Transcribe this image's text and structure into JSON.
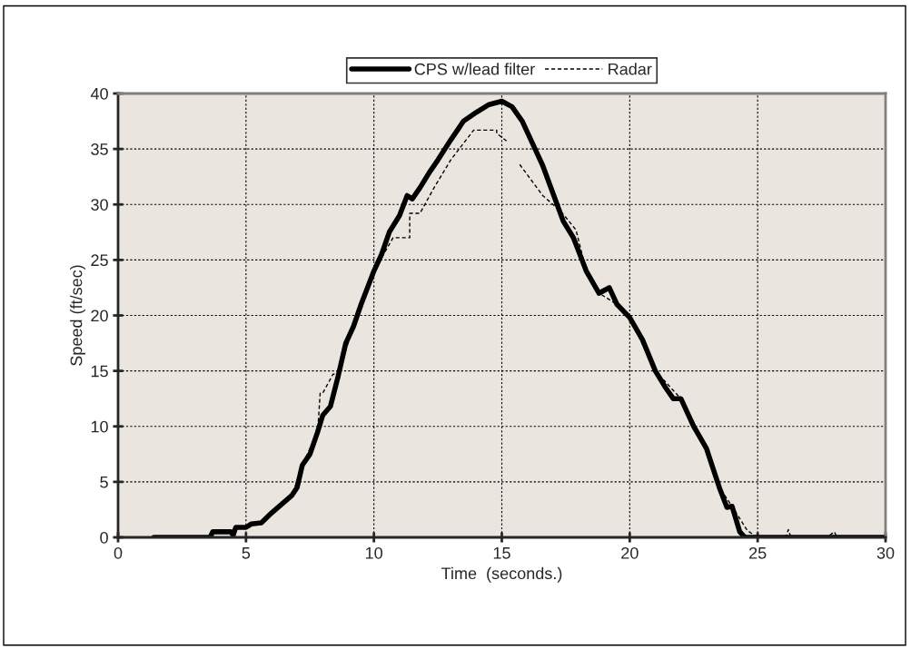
{
  "chart_data": {
    "type": "line",
    "xlabel": "Time  (seconds.)",
    "ylabel": "Speed (ft/sec)",
    "xlim": [
      0,
      30
    ],
    "xticks": [
      0,
      5,
      10,
      15,
      20,
      25,
      30
    ],
    "ylim": [
      0,
      40
    ],
    "yticks": [
      0,
      5,
      10,
      15,
      20,
      25,
      30,
      35,
      40
    ],
    "grid": true,
    "legend": "top",
    "series": [
      {
        "name": "CPS w/lead filter",
        "color": "#000000",
        "line_style": "solid",
        "x": [
          1.4,
          3.6,
          3.7,
          4.4,
          4.5,
          4.6,
          5.0,
          5.2,
          5.6,
          6.0,
          6.4,
          6.8,
          7.0,
          7.2,
          7.5,
          7.8,
          8.0,
          8.3,
          8.6,
          8.9,
          9.2,
          9.5,
          9.8,
          10.0,
          10.3,
          10.6,
          11.0,
          11.3,
          11.5,
          11.8,
          12.2,
          12.5,
          13.0,
          13.5,
          14.0,
          14.5,
          15.0,
          15.4,
          15.8,
          16.3,
          16.6,
          17.0,
          17.4,
          17.8,
          18.3,
          18.8,
          19.2,
          19.5,
          20.0,
          20.5,
          21.0,
          21.4,
          21.7,
          22.0,
          22.5,
          23.0,
          23.5,
          23.8,
          24.0,
          24.3,
          24.5,
          30.0
        ],
        "values": [
          0,
          0,
          0.5,
          0.5,
          0.2,
          0.9,
          0.9,
          1.2,
          1.3,
          2.2,
          3.0,
          3.8,
          4.5,
          6.5,
          7.5,
          9.5,
          11.0,
          11.8,
          14.5,
          17.5,
          19.0,
          21.0,
          22.8,
          24.0,
          25.5,
          27.5,
          29.0,
          30.8,
          30.5,
          31.5,
          33.0,
          34.0,
          35.8,
          37.5,
          38.3,
          39.0,
          39.3,
          38.8,
          37.5,
          35.0,
          33.5,
          31.0,
          28.5,
          27.0,
          24.0,
          22.0,
          22.5,
          21.0,
          19.8,
          17.8,
          15.0,
          13.5,
          12.5,
          12.5,
          10.0,
          8.0,
          4.5,
          2.7,
          2.8,
          0.5,
          0,
          0
        ]
      },
      {
        "name": "Radar",
        "color": "#000000",
        "line_style": "dashed",
        "x": [
          1.4,
          3.6,
          3.7,
          4.4,
          4.6,
          5.0,
          5.6,
          6.0,
          6.8,
          7.2,
          7.8,
          7.9,
          8.0,
          8.4,
          8.6,
          9.2,
          10.0,
          10.75,
          11.4,
          11.4,
          11.8,
          12.35,
          13.0,
          13.5,
          13.9,
          14.8,
          14.8,
          15.2,
          15.5,
          15.7,
          16.6,
          17.3,
          17.9,
          18.3,
          18.8,
          19.5,
          20.0,
          21.0,
          22.0,
          23.0,
          23.5,
          24.0,
          24.6,
          25.0,
          26.1,
          26.2,
          26.3,
          27.7,
          28.0,
          28.1,
          30.0
        ],
        "values": [
          0,
          0,
          0.5,
          0.5,
          0.9,
          0.9,
          1.3,
          2.2,
          3.8,
          6.5,
          9.5,
          13.0,
          13.0,
          14.7,
          14.7,
          19.0,
          24.0,
          27.0,
          27.0,
          29.2,
          29.2,
          31.5,
          34.0,
          35.5,
          36.7,
          36.7,
          36.4,
          35.7,
          null,
          33.6,
          30.8,
          29.4,
          27.7,
          24.0,
          22.0,
          21.0,
          19.8,
          15.0,
          12.5,
          8.0,
          4.5,
          2.8,
          0.6,
          0,
          0,
          0.7,
          0,
          0,
          0.5,
          0,
          0
        ]
      }
    ]
  }
}
